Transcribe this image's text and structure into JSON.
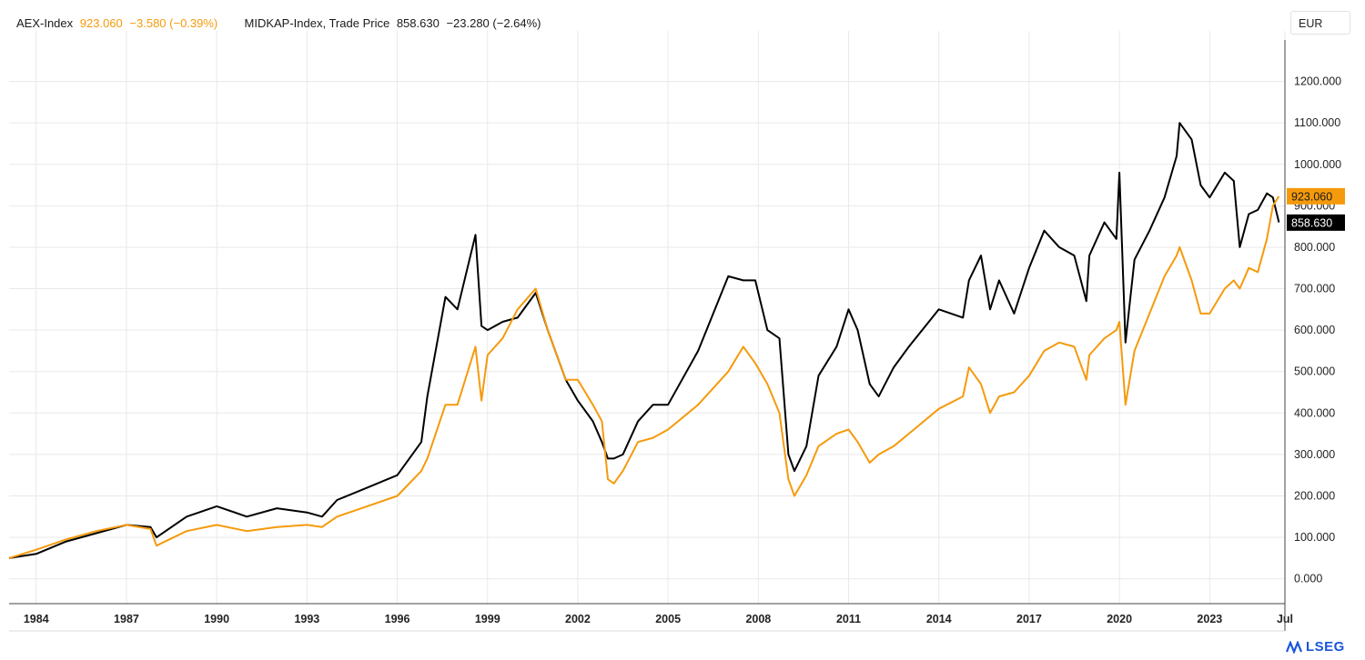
{
  "legend": {
    "series1_name": "AEX-Index",
    "series1_value": "923.060",
    "series1_change": "−3.580 (−0.39%)",
    "series2_name": "MIDKAP-Index, Trade Price",
    "series2_value": "858.630",
    "series2_change": "−23.280 (−2.64%)"
  },
  "currency": "EUR",
  "logo_text": "LSEG",
  "colors": {
    "aex": "#f59a0c",
    "midkap": "#000000",
    "grid": "#e9e9e9",
    "axis": "#444444"
  },
  "chart_data": {
    "type": "line",
    "x_unit": "year",
    "xlim": [
      1983.1,
      2025.5
    ],
    "ylim": [
      -60,
      1300
    ],
    "x_ticks": [
      {
        "value": 1984,
        "label": "1984"
      },
      {
        "value": 1987,
        "label": "1987"
      },
      {
        "value": 1990,
        "label": "1990"
      },
      {
        "value": 1993,
        "label": "1993"
      },
      {
        "value": 1996,
        "label": "1996"
      },
      {
        "value": 1999,
        "label": "1999"
      },
      {
        "value": 2002,
        "label": "2002"
      },
      {
        "value": 2005,
        "label": "2005"
      },
      {
        "value": 2008,
        "label": "2008"
      },
      {
        "value": 2011,
        "label": "2011"
      },
      {
        "value": 2014,
        "label": "2014"
      },
      {
        "value": 2017,
        "label": "2017"
      },
      {
        "value": 2020,
        "label": "2020"
      },
      {
        "value": 2023,
        "label": "2023"
      },
      {
        "value": 2025.5,
        "label": "Jul"
      }
    ],
    "y_ticks": [
      {
        "value": 0,
        "label": "0.000"
      },
      {
        "value": 100,
        "label": "100.000"
      },
      {
        "value": 200,
        "label": "200.000"
      },
      {
        "value": 300,
        "label": "300.000"
      },
      {
        "value": 400,
        "label": "400.000"
      },
      {
        "value": 500,
        "label": "500.000"
      },
      {
        "value": 600,
        "label": "600.000"
      },
      {
        "value": 700,
        "label": "700.000"
      },
      {
        "value": 800,
        "label": "800.000"
      },
      {
        "value": 900,
        "label": "900.000"
      },
      {
        "value": 1000,
        "label": "1000.000"
      },
      {
        "value": 1100,
        "label": "1100.000"
      },
      {
        "value": 1200,
        "label": "1200.000"
      }
    ],
    "series": [
      {
        "name": "MIDKAP-Index, Trade Price",
        "color": "#000000",
        "last_label": "858.630",
        "x": [
          1983.1,
          1984,
          1985,
          1986,
          1987,
          1987.8,
          1988,
          1989,
          1990,
          1991,
          1992,
          1993,
          1993.5,
          1994,
          1995,
          1996,
          1996.8,
          1997,
          1997.6,
          1998,
          1998.6,
          1998.8,
          1999,
          1999.5,
          2000,
          2000.6,
          2001,
          2001.6,
          2002,
          2002.5,
          2002.8,
          2003,
          2003.2,
          2003.5,
          2004,
          2004.5,
          2005,
          2006,
          2007,
          2007.5,
          2007.9,
          2008.3,
          2008.7,
          2009,
          2009.2,
          2009.6,
          2010,
          2010.6,
          2011,
          2011.3,
          2011.7,
          2012,
          2012.5,
          2013,
          2014,
          2014.8,
          2015,
          2015.4,
          2015.7,
          2016,
          2016.5,
          2017,
          2017.5,
          2018,
          2018.5,
          2018.9,
          2019,
          2019.5,
          2019.9,
          2020,
          2020.2,
          2020.5,
          2021,
          2021.5,
          2021.9,
          2022,
          2022.4,
          2022.7,
          2023,
          2023.5,
          2023.8,
          2024,
          2024.3,
          2024.6,
          2024.9,
          2025.1,
          2025.3
        ],
        "y": [
          50,
          60,
          90,
          110,
          130,
          125,
          100,
          150,
          175,
          150,
          170,
          160,
          150,
          190,
          220,
          250,
          330,
          440,
          680,
          650,
          830,
          610,
          600,
          620,
          630,
          690,
          600,
          480,
          430,
          380,
          330,
          290,
          290,
          300,
          380,
          420,
          420,
          550,
          730,
          720,
          720,
          600,
          580,
          300,
          260,
          320,
          490,
          560,
          650,
          600,
          470,
          440,
          510,
          560,
          650,
          630,
          720,
          780,
          650,
          720,
          640,
          750,
          840,
          800,
          780,
          670,
          780,
          860,
          820,
          980,
          570,
          770,
          840,
          920,
          1020,
          1100,
          1060,
          950,
          920,
          980,
          960,
          800,
          880,
          890,
          930,
          920,
          860
        ]
      },
      {
        "name": "AEX-Index",
        "color": "#f59a0c",
        "last_label": "923.060",
        "x": [
          1983.1,
          1984,
          1985,
          1986,
          1987,
          1987.8,
          1988,
          1989,
          1990,
          1991,
          1992,
          1993,
          1993.5,
          1994,
          1995,
          1996,
          1996.8,
          1997,
          1997.6,
          1998,
          1998.6,
          1998.8,
          1999,
          1999.5,
          2000,
          2000.6,
          2001,
          2001.6,
          2002,
          2002.5,
          2002.8,
          2003,
          2003.2,
          2003.5,
          2004,
          2004.5,
          2005,
          2006,
          2007,
          2007.5,
          2007.9,
          2008.3,
          2008.7,
          2009,
          2009.2,
          2009.6,
          2010,
          2010.6,
          2011,
          2011.3,
          2011.7,
          2012,
          2012.5,
          2013,
          2014,
          2014.8,
          2015,
          2015.4,
          2015.7,
          2016,
          2016.5,
          2017,
          2017.5,
          2018,
          2018.5,
          2018.9,
          2019,
          2019.5,
          2019.9,
          2020,
          2020.2,
          2020.5,
          2021,
          2021.5,
          2021.9,
          2022,
          2022.4,
          2022.7,
          2023,
          2023.5,
          2023.8,
          2024,
          2024.3,
          2024.6,
          2024.9,
          2025.1,
          2025.3
        ],
        "y": [
          50,
          70,
          95,
          115,
          130,
          120,
          80,
          115,
          130,
          115,
          125,
          130,
          125,
          150,
          175,
          200,
          260,
          290,
          420,
          420,
          560,
          430,
          540,
          580,
          650,
          700,
          600,
          480,
          480,
          420,
          380,
          240,
          230,
          260,
          330,
          340,
          360,
          420,
          500,
          560,
          520,
          470,
          400,
          240,
          200,
          250,
          320,
          350,
          360,
          330,
          280,
          300,
          320,
          350,
          410,
          440,
          510,
          470,
          400,
          440,
          450,
          490,
          550,
          570,
          560,
          480,
          540,
          580,
          600,
          620,
          420,
          550,
          640,
          730,
          780,
          800,
          720,
          640,
          640,
          700,
          720,
          700,
          750,
          740,
          820,
          900,
          923
        ]
      }
    ]
  }
}
